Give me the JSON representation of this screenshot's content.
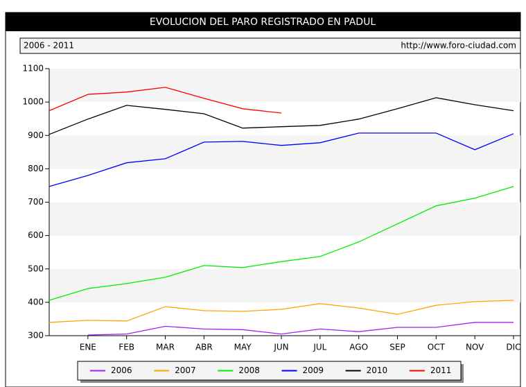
{
  "chart_data": {
    "type": "line",
    "title": "EVOLUCION DEL PARO REGISTRADO EN PADUL",
    "subtitle": "2006 - 2011",
    "source": "http://www.foro-ciudad.com",
    "categories": [
      null,
      "ENE",
      "FEB",
      "MAR",
      "ABR",
      "MAY",
      "JUN",
      "JUL",
      "AGO",
      "SEP",
      "OCT",
      "NOV",
      "DIC"
    ],
    "series": [
      {
        "name": "2006",
        "color": "#a020f0",
        "values": [
          null,
          302,
          305,
          328,
          320,
          318,
          305,
          320,
          312,
          325,
          325,
          340,
          340
        ]
      },
      {
        "name": "2007",
        "color": "#ffa500",
        "values": [
          340,
          346,
          344,
          387,
          375,
          373,
          379,
          396,
          383,
          364,
          391,
          402,
          406
        ]
      },
      {
        "name": "2008",
        "color": "#00ee00",
        "values": [
          406,
          441,
          456,
          475,
          510,
          504,
          522,
          537,
          581,
          635,
          689,
          712,
          747
        ]
      },
      {
        "name": "2009",
        "color": "#0000ff",
        "values": [
          747,
          780,
          818,
          830,
          880,
          882,
          870,
          878,
          907,
          907,
          907,
          857,
          905
        ]
      },
      {
        "name": "2010",
        "color": "#000000",
        "values": [
          903,
          949,
          990,
          978,
          965,
          922,
          926,
          930,
          949,
          980,
          1013,
          992,
          974
        ]
      },
      {
        "name": "2011",
        "color": "#ff0000",
        "values": [
          974,
          1023,
          1030,
          1044,
          1011,
          980,
          967,
          null,
          null,
          null,
          null,
          null,
          null
        ]
      }
    ],
    "ylim": [
      300,
      1100
    ],
    "yticks": [
      300,
      400,
      500,
      600,
      700,
      800,
      900,
      1000,
      1100
    ],
    "grid": true
  }
}
